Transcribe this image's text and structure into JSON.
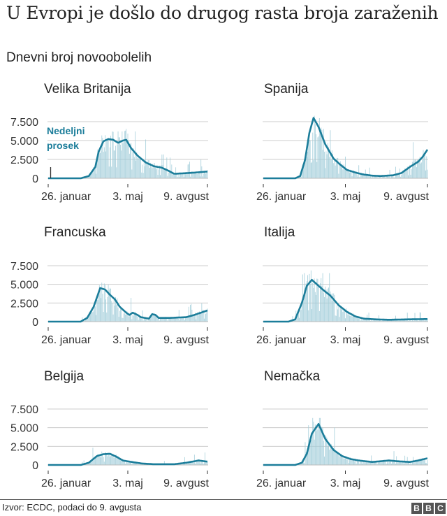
{
  "header": {
    "title": "U Evropi je došlo do drugog rasta broja zaraženih",
    "subtitle": "Dnevni broj novoobolelih"
  },
  "footer": {
    "source": "Izvor: ECDC, podaci do 9. avgusta",
    "logo_letters": [
      "B",
      "B",
      "C"
    ]
  },
  "chart_data": [
    {
      "type": "bar+line",
      "title": "Velika Britanija",
      "legend_annotation": "Nedeljni prosek",
      "x_ticks": [
        "26. januar",
        "3. maj",
        "9. avgust"
      ],
      "y_ticks": [
        "7.500",
        "5.000",
        "2.500",
        "0"
      ],
      "y_values": [
        7500,
        5000,
        2500,
        0
      ],
      "ylim": [
        0,
        7500
      ],
      "x_range_days": [
        0,
        196
      ],
      "weekly_average": [
        [
          0,
          0
        ],
        [
          40,
          0
        ],
        [
          50,
          300
        ],
        [
          58,
          1500
        ],
        [
          62,
          3500
        ],
        [
          68,
          4900
        ],
        [
          74,
          5200
        ],
        [
          80,
          5100
        ],
        [
          86,
          4700
        ],
        [
          92,
          5000
        ],
        [
          96,
          5100
        ],
        [
          102,
          4000
        ],
        [
          110,
          3000
        ],
        [
          120,
          2100
        ],
        [
          130,
          1600
        ],
        [
          140,
          1400
        ],
        [
          148,
          1000
        ],
        [
          155,
          600
        ],
        [
          165,
          650
        ],
        [
          180,
          750
        ],
        [
          196,
          900
        ]
      ],
      "daily_peak_max": 6200
    },
    {
      "type": "bar+line",
      "title": "Spanija",
      "x_ticks": [
        "26. januar",
        "3. maj",
        "9. avgust"
      ],
      "ylim": [
        0,
        7500
      ],
      "x_range_days": [
        0,
        196
      ],
      "weekly_average": [
        [
          0,
          0
        ],
        [
          38,
          0
        ],
        [
          44,
          300
        ],
        [
          50,
          2500
        ],
        [
          55,
          6000
        ],
        [
          60,
          8000
        ],
        [
          66,
          6800
        ],
        [
          74,
          4500
        ],
        [
          84,
          2600
        ],
        [
          92,
          1800
        ],
        [
          100,
          1100
        ],
        [
          106,
          900
        ],
        [
          112,
          700
        ],
        [
          120,
          500
        ],
        [
          130,
          350
        ],
        [
          140,
          300
        ],
        [
          155,
          400
        ],
        [
          165,
          700
        ],
        [
          175,
          1500
        ],
        [
          185,
          2200
        ],
        [
          190,
          2800
        ],
        [
          196,
          3800
        ]
      ],
      "daily_peak_max": 9200
    },
    {
      "type": "bar+line",
      "title": "Francuska",
      "x_ticks": [
        "26. januar",
        "3. maj",
        "9. avgust"
      ],
      "y_ticks": [
        "7.500",
        "5.000",
        "2.500",
        "0"
      ],
      "y_values": [
        7500,
        5000,
        2500,
        0
      ],
      "ylim": [
        0,
        7500
      ],
      "x_range_days": [
        0,
        196
      ],
      "weekly_average": [
        [
          0,
          0
        ],
        [
          40,
          0
        ],
        [
          48,
          500
        ],
        [
          56,
          2000
        ],
        [
          64,
          4500
        ],
        [
          70,
          4300
        ],
        [
          76,
          3600
        ],
        [
          82,
          3000
        ],
        [
          88,
          2000
        ],
        [
          96,
          1200
        ],
        [
          100,
          900
        ],
        [
          104,
          1200
        ],
        [
          110,
          900
        ],
        [
          114,
          600
        ],
        [
          124,
          400
        ],
        [
          128,
          1000
        ],
        [
          132,
          900
        ],
        [
          136,
          500
        ],
        [
          150,
          500
        ],
        [
          160,
          550
        ],
        [
          170,
          600
        ],
        [
          180,
          900
        ],
        [
          196,
          1500
        ]
      ],
      "daily_peak_max": 7500
    },
    {
      "type": "bar+line",
      "title": "Italija",
      "x_ticks": [
        "26. januar",
        "3. maj",
        "9. avgust"
      ],
      "ylim": [
        0,
        7500
      ],
      "x_range_days": [
        0,
        196
      ],
      "weekly_average": [
        [
          0,
          0
        ],
        [
          30,
          0
        ],
        [
          38,
          300
        ],
        [
          46,
          2500
        ],
        [
          52,
          4800
        ],
        [
          58,
          5600
        ],
        [
          64,
          5000
        ],
        [
          72,
          4200
        ],
        [
          80,
          3500
        ],
        [
          90,
          2200
        ],
        [
          100,
          1300
        ],
        [
          110,
          700
        ],
        [
          120,
          400
        ],
        [
          135,
          300
        ],
        [
          150,
          250
        ],
        [
          170,
          300
        ],
        [
          196,
          350
        ]
      ],
      "daily_peak_max": 6500
    },
    {
      "type": "bar+line",
      "title": "Belgija",
      "x_ticks": [
        "26. januar",
        "3. maj",
        "9. avgust"
      ],
      "y_ticks": [
        "7.500",
        "5.000",
        "2.500",
        "0"
      ],
      "y_values": [
        7500,
        5000,
        2500,
        0
      ],
      "ylim": [
        0,
        7500
      ],
      "x_range_days": [
        0,
        196
      ],
      "weekly_average": [
        [
          0,
          0
        ],
        [
          40,
          0
        ],
        [
          50,
          300
        ],
        [
          60,
          1200
        ],
        [
          68,
          1450
        ],
        [
          76,
          1500
        ],
        [
          84,
          1100
        ],
        [
          92,
          600
        ],
        [
          100,
          450
        ],
        [
          115,
          200
        ],
        [
          130,
          100
        ],
        [
          155,
          100
        ],
        [
          170,
          300
        ],
        [
          185,
          600
        ],
        [
          196,
          450
        ]
      ],
      "daily_peak_max": 2300
    },
    {
      "type": "bar+line",
      "title": "Nemačka",
      "x_ticks": [
        "26. januar",
        "3. maj",
        "9. avgust"
      ],
      "ylim": [
        0,
        7500
      ],
      "x_range_days": [
        0,
        196
      ],
      "weekly_average": [
        [
          0,
          0
        ],
        [
          38,
          0
        ],
        [
          46,
          300
        ],
        [
          52,
          1500
        ],
        [
          58,
          4200
        ],
        [
          66,
          5500
        ],
        [
          74,
          3500
        ],
        [
          84,
          2000
        ],
        [
          94,
          1200
        ],
        [
          104,
          800
        ],
        [
          114,
          600
        ],
        [
          130,
          400
        ],
        [
          140,
          500
        ],
        [
          150,
          600
        ],
        [
          160,
          500
        ],
        [
          175,
          400
        ],
        [
          185,
          600
        ],
        [
          196,
          900
        ]
      ],
      "daily_peak_max": 6300
    }
  ]
}
